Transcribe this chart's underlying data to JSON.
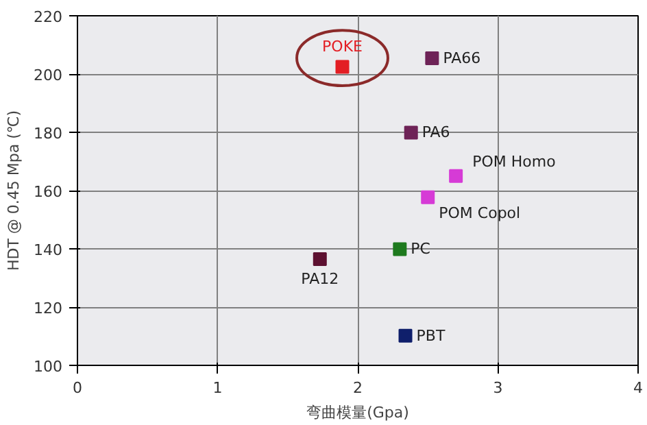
{
  "chart_data": {
    "type": "scatter",
    "xlabel": "弯曲模量(Gpa)",
    "ylabel": "HDT @ 0.45 Mpa (℃)",
    "xlim": [
      0,
      4
    ],
    "xticks": [
      0,
      1,
      2,
      3,
      4
    ],
    "ylim": [
      100,
      220
    ],
    "yticks": [
      100,
      120,
      140,
      160,
      180,
      200,
      220
    ],
    "grid": true,
    "marker": "square",
    "series": [
      {
        "name": "POKE",
        "color": "#e31e24",
        "x": [
          1.89
        ],
        "values": [
          202.5
        ]
      },
      {
        "name": "PA66",
        "color": "#6e2357",
        "x": [
          2.53
        ],
        "values": [
          205.4
        ]
      },
      {
        "name": "PA6",
        "color": "#6e2357",
        "x": [
          2.38
        ],
        "values": [
          179.9
        ]
      },
      {
        "name": "POM Homo",
        "color": "#d63bd6",
        "x": [
          2.7
        ],
        "values": [
          165
        ]
      },
      {
        "name": "POM Copol",
        "color": "#d63bd6",
        "x": [
          2.5
        ],
        "values": [
          157.7
        ]
      },
      {
        "name": "PC",
        "color": "#1e7a1e",
        "x": [
          2.3
        ],
        "values": [
          139.9
        ]
      },
      {
        "name": "PA12",
        "color": "#5c1030",
        "x": [
          1.73
        ],
        "values": [
          136.5
        ]
      },
      {
        "name": "PBT",
        "color": "#0f1f6b",
        "x": [
          2.34
        ],
        "values": [
          110.2
        ]
      }
    ]
  }
}
